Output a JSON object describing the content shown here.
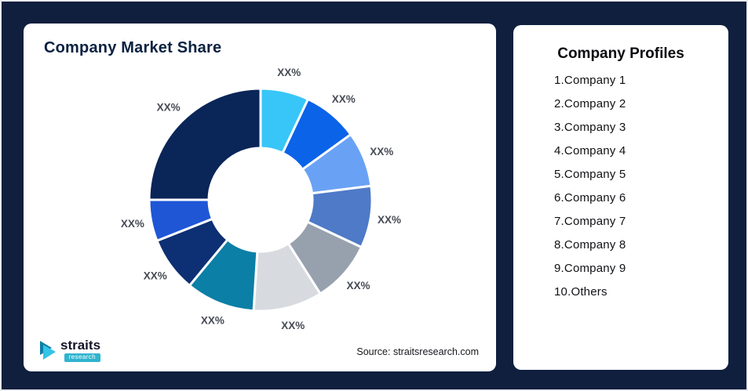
{
  "page": {
    "background": "#101F3E"
  },
  "left_card": {
    "title": "Company Market Share",
    "source": "Source: straitsresearch.com",
    "logo": {
      "name": "straits",
      "sub": "research",
      "accent": "#2FB4CF"
    }
  },
  "right_card": {
    "title": "Company Profiles",
    "items": [
      "1.Company 1",
      "2.Company 2",
      "3.Company 3",
      "4.Company 4",
      "5.Company 5",
      "6.Company 6",
      "7.Company 7",
      "8.Company 8",
      "9.Company 9",
      "10.Others"
    ]
  },
  "chart_data": {
    "type": "pie",
    "subtype": "donut",
    "title": "Company Market Share",
    "labels": [
      "XX%",
      "XX%",
      "XX%",
      "XX%",
      "XX%",
      "XX%",
      "XX%",
      "XX%",
      "XX%",
      "XX%"
    ],
    "values": [
      7,
      8,
      8,
      9,
      9,
      10,
      10,
      8,
      6,
      25
    ],
    "colors": [
      "#38C6F8",
      "#0B63E8",
      "#69A2F5",
      "#4E7AC7",
      "#97A1AE",
      "#D7DBE0",
      "#0B7FA6",
      "#0D2F73",
      "#1E56D6",
      "#0A2558"
    ],
    "start_angle_deg": 0,
    "direction": "clockwise",
    "inner_radius_ratio": 0.465,
    "legend_position": "none",
    "value_labels_shown": true
  }
}
